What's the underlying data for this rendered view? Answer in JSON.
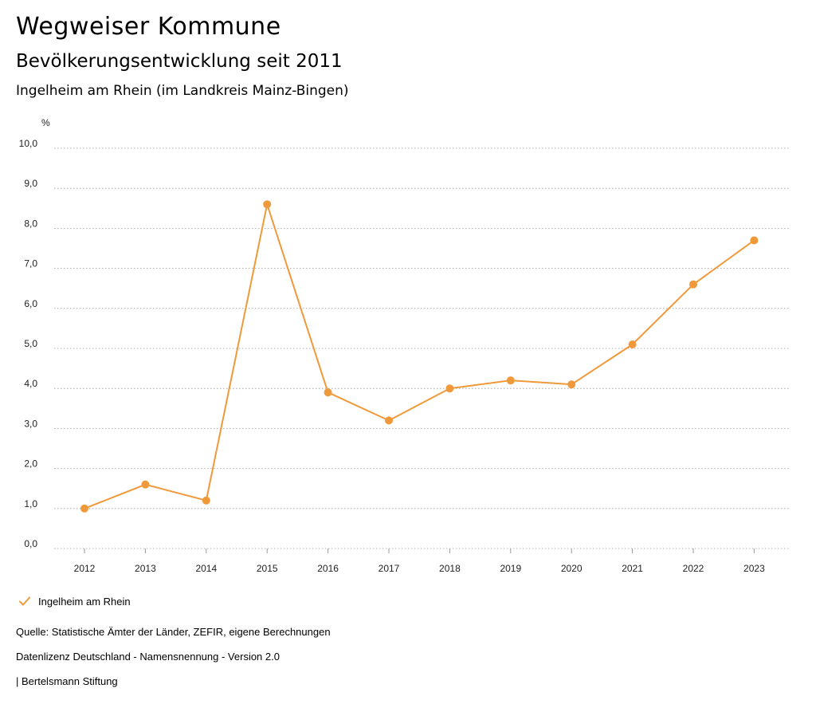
{
  "header": {
    "app_title": "Wegweiser Kommune",
    "title": "Bevölkerungsentwicklung seit 2011",
    "subtitle": "Ingelheim am Rhein (im Landkreis Mainz-Bingen)"
  },
  "chart_data": {
    "type": "line",
    "title": "Bevölkerungsentwicklung seit 2011",
    "subtitle": "Ingelheim am Rhein (im Landkreis Mainz-Bingen)",
    "xlabel": "",
    "ylabel": "%",
    "ylim": [
      0,
      10
    ],
    "yticks": [
      "0,0",
      "1,0",
      "2,0",
      "3,0",
      "4,0",
      "5,0",
      "6,0",
      "7,0",
      "8,0",
      "9,0",
      "10,0"
    ],
    "categories": [
      "2012",
      "2013",
      "2014",
      "2015",
      "2016",
      "2017",
      "2018",
      "2019",
      "2020",
      "2021",
      "2022",
      "2023"
    ],
    "series": [
      {
        "name": "Ingelheim am Rhein",
        "color": "#f0993a",
        "values": [
          1.0,
          1.6,
          1.2,
          8.6,
          3.9,
          3.2,
          4.0,
          4.2,
          4.1,
          5.1,
          6.6,
          7.7
        ]
      }
    ],
    "grid": true,
    "grid_style": "dotted",
    "legend_position": "bottom-left"
  },
  "legend": {
    "label": "Ingelheim am Rhein",
    "icon": "check-icon"
  },
  "footer": {
    "source": "Quelle: Statistische Ämter der Länder, ZEFIR, eigene Berechnungen",
    "license": "Datenlizenz Deutschland - Namensnennung - Version 2.0",
    "publisher": "| Bertelsmann Stiftung"
  }
}
